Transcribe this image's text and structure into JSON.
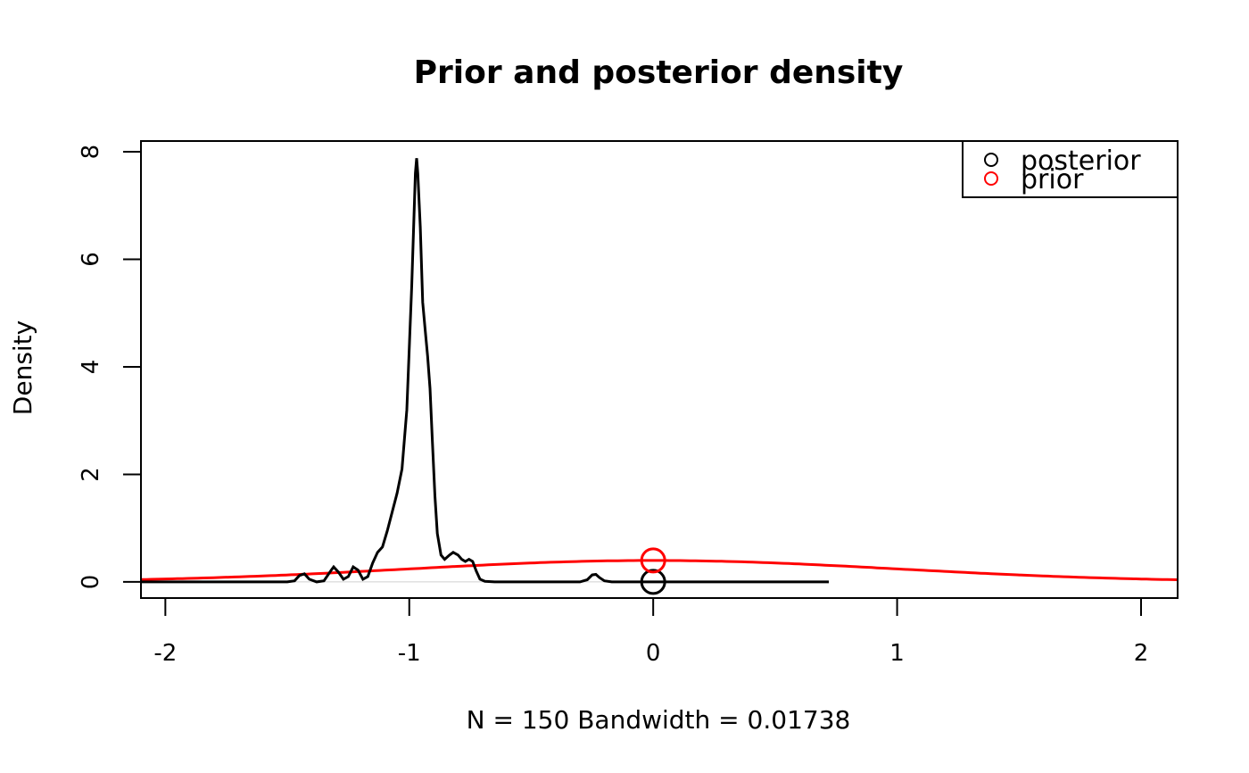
{
  "chart_data": {
    "type": "line",
    "title": "Prior and posterior density",
    "xlabel": "N = 150   Bandwidth = 0.01738",
    "ylabel": "Density",
    "xlim": [
      -2.1,
      2.15
    ],
    "ylim": [
      -0.3,
      8.2
    ],
    "x_ticks": [
      -2,
      -1,
      0,
      1,
      2
    ],
    "x_tick_labels": [
      "-2",
      "-1",
      "0",
      "1",
      "2"
    ],
    "y_ticks": [
      0,
      2,
      4,
      6,
      8
    ],
    "y_tick_labels": [
      "0",
      "2",
      "4",
      "6",
      "8"
    ],
    "grid": false,
    "legend_position": "top-right",
    "legend": [
      {
        "label": "posterior",
        "color": "#000000"
      },
      {
        "label": "prior",
        "color": "#ff0000"
      }
    ],
    "series": [
      {
        "name": "posterior",
        "color": "#000000",
        "points": [
          [
            -2.1,
            0
          ],
          [
            -1.5,
            0
          ],
          [
            -1.47,
            0.02
          ],
          [
            -1.45,
            0.12
          ],
          [
            -1.43,
            0.15
          ],
          [
            -1.41,
            0.05
          ],
          [
            -1.38,
            0.0
          ],
          [
            -1.35,
            0.02
          ],
          [
            -1.32,
            0.22
          ],
          [
            -1.31,
            0.28
          ],
          [
            -1.29,
            0.18
          ],
          [
            -1.27,
            0.05
          ],
          [
            -1.25,
            0.1
          ],
          [
            -1.23,
            0.28
          ],
          [
            -1.21,
            0.22
          ],
          [
            -1.19,
            0.05
          ],
          [
            -1.17,
            0.1
          ],
          [
            -1.15,
            0.35
          ],
          [
            -1.13,
            0.55
          ],
          [
            -1.11,
            0.65
          ],
          [
            -1.09,
            0.95
          ],
          [
            -1.07,
            1.3
          ],
          [
            -1.05,
            1.65
          ],
          [
            -1.03,
            2.1
          ],
          [
            -1.01,
            3.2
          ],
          [
            -0.99,
            5.5
          ],
          [
            -0.975,
            7.6
          ],
          [
            -0.97,
            7.88
          ],
          [
            -0.965,
            7.6
          ],
          [
            -0.955,
            6.6
          ],
          [
            -0.945,
            5.2
          ],
          [
            -0.935,
            4.7
          ],
          [
            -0.925,
            4.2
          ],
          [
            -0.915,
            3.6
          ],
          [
            -0.905,
            2.6
          ],
          [
            -0.895,
            1.6
          ],
          [
            -0.885,
            0.9
          ],
          [
            -0.87,
            0.5
          ],
          [
            -0.855,
            0.42
          ],
          [
            -0.835,
            0.5
          ],
          [
            -0.82,
            0.55
          ],
          [
            -0.8,
            0.5
          ],
          [
            -0.785,
            0.42
          ],
          [
            -0.77,
            0.38
          ],
          [
            -0.755,
            0.42
          ],
          [
            -0.74,
            0.38
          ],
          [
            -0.725,
            0.2
          ],
          [
            -0.71,
            0.05
          ],
          [
            -0.69,
            0.01
          ],
          [
            -0.65,
            0.0
          ],
          [
            -0.3,
            0.0
          ],
          [
            -0.27,
            0.04
          ],
          [
            -0.25,
            0.13
          ],
          [
            -0.235,
            0.14
          ],
          [
            -0.22,
            0.08
          ],
          [
            -0.2,
            0.02
          ],
          [
            -0.17,
            0.0
          ],
          [
            0.72,
            0.0
          ]
        ]
      },
      {
        "name": "prior",
        "color": "#ff0000",
        "distribution": "normal",
        "mean": 0,
        "sd": 1,
        "x_range": [
          -2.1,
          2.15
        ]
      }
    ],
    "point_markers": [
      {
        "series": "posterior",
        "x": 0,
        "y": 0,
        "color": "#000000"
      },
      {
        "series": "prior",
        "x": 0,
        "y": 0.399,
        "color": "#ff0000"
      }
    ]
  }
}
